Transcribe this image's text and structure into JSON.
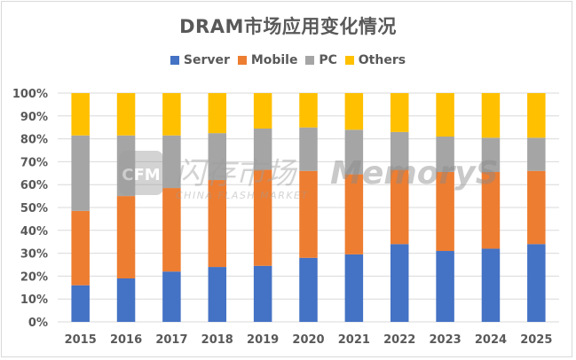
{
  "chart_data": {
    "type": "bar",
    "stacked": true,
    "title": "DRAM市场应用变化情况",
    "xlabel": "",
    "ylabel": "",
    "ylim": [
      0,
      100
    ],
    "yticks": [
      "0%",
      "10%",
      "20%",
      "30%",
      "40%",
      "50%",
      "60%",
      "70%",
      "80%",
      "90%",
      "100%"
    ],
    "grid": true,
    "legend_position": "top",
    "categories": [
      "2015",
      "2016",
      "2017",
      "2018",
      "2019",
      "2020",
      "2021",
      "2022",
      "2023",
      "2024",
      "2025"
    ],
    "series": [
      {
        "name": "Server",
        "color": "#4472c4",
        "values": [
          16,
          19,
          22,
          24,
          24.5,
          28,
          29.5,
          34,
          31,
          32,
          34
        ]
      },
      {
        "name": "Mobile",
        "color": "#ed7d31",
        "values": [
          32.5,
          36,
          36.5,
          38,
          42,
          38,
          35,
          32.5,
          34.5,
          33.5,
          32
        ]
      },
      {
        "name": "PC",
        "color": "#a5a5a5",
        "values": [
          33,
          26.5,
          23,
          20.5,
          18,
          19,
          19.5,
          16.5,
          15.5,
          15,
          14.5
        ]
      },
      {
        "name": "Others",
        "color": "#ffc000",
        "values": [
          18.5,
          18.5,
          18.5,
          17.5,
          15.5,
          15,
          16,
          17,
          19,
          19.5,
          19.5
        ]
      }
    ]
  },
  "watermark": {
    "logo_text": "CFM",
    "cn_text": "闪存市场",
    "en_text": "CHINA FLASH MARKET",
    "brand_text": "MemoryS"
  }
}
